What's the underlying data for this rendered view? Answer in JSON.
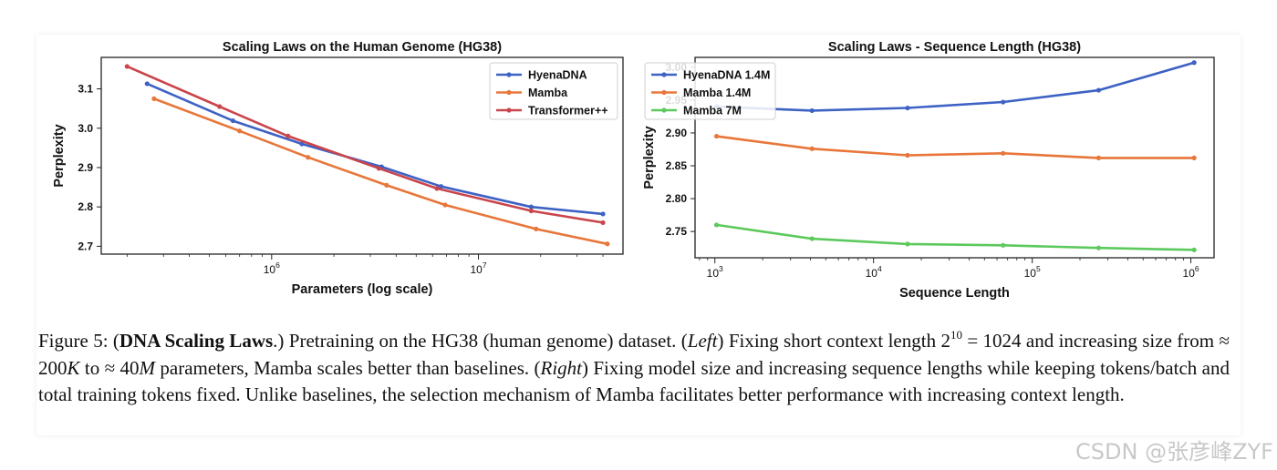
{
  "chart_data": [
    {
      "type": "line",
      "title": "Scaling Laws on the Human Genome (HG38)",
      "xlabel": "Parameters (log scale)",
      "ylabel": "Perplexity",
      "xscale": "log",
      "xlim": [
        150000,
        50000000
      ],
      "ylim": [
        2.68,
        3.18
      ],
      "xticks": [
        1000000,
        10000000
      ],
      "xtick_labels": [
        {
          "base": "10",
          "exp": "6"
        },
        {
          "base": "10",
          "exp": "7"
        }
      ],
      "yticks": [
        2.7,
        2.8,
        2.9,
        3.0,
        3.1
      ],
      "ytick_labels": [
        "2.7",
        "2.8",
        "2.9",
        "3.0",
        "3.1"
      ],
      "legend_position": "top-right",
      "series": [
        {
          "name": "HyenaDNA",
          "color": "#3e62c4",
          "x": [
            250000,
            650000,
            1400000,
            3400000,
            6600000,
            18000000,
            40000000
          ],
          "y": [
            3.113,
            3.019,
            2.96,
            2.902,
            2.852,
            2.8,
            2.782
          ]
        },
        {
          "name": "Mamba",
          "color": "#e8763a",
          "x": [
            270000,
            700000,
            1500000,
            3600000,
            6900000,
            19000000,
            42000000
          ],
          "y": [
            3.075,
            2.993,
            2.926,
            2.855,
            2.805,
            2.744,
            2.706
          ]
        },
        {
          "name": "Transformer++",
          "color": "#c9454b",
          "x": [
            200000,
            560000,
            1200000,
            3300000,
            6300000,
            18000000,
            40000000
          ],
          "y": [
            3.157,
            3.055,
            2.98,
            2.898,
            2.847,
            2.79,
            2.76
          ]
        }
      ]
    },
    {
      "type": "line",
      "title": "Scaling Laws - Sequence Length (HG38)",
      "xlabel": "Sequence Length",
      "ylabel": "Perplexity",
      "xscale": "log",
      "xlim": [
        750,
        1400000
      ],
      "ylim": [
        2.71,
        3.015
      ],
      "xticks": [
        1000,
        10000,
        100000,
        1000000
      ],
      "xtick_labels": [
        {
          "base": "10",
          "exp": "3"
        },
        {
          "base": "10",
          "exp": "4"
        },
        {
          "base": "10",
          "exp": "5"
        },
        {
          "base": "10",
          "exp": "6"
        }
      ],
      "yticks": [
        2.75,
        2.8,
        2.85,
        2.9,
        2.95,
        3.0
      ],
      "ytick_labels": [
        "2.75",
        "2.80",
        "2.85",
        "2.90",
        "2.95",
        "3.00"
      ],
      "legend_position": "top-left",
      "series": [
        {
          "name": "HyenaDNA 1.4M",
          "color": "#3e62c4",
          "x": [
            1024,
            4096,
            16384,
            65536,
            262144,
            1048576
          ],
          "y": [
            2.94,
            2.934,
            2.938,
            2.947,
            2.965,
            3.007
          ]
        },
        {
          "name": "Mamba 1.4M",
          "color": "#e8763a",
          "x": [
            1024,
            4096,
            16384,
            65536,
            262144,
            1048576
          ],
          "y": [
            2.895,
            2.876,
            2.866,
            2.869,
            2.862,
            2.862
          ]
        },
        {
          "name": "Mamba 7M",
          "color": "#5cc95c",
          "x": [
            1024,
            4096,
            16384,
            65536,
            262144,
            1048576
          ],
          "y": [
            2.76,
            2.739,
            2.731,
            2.729,
            2.725,
            2.722
          ]
        }
      ]
    }
  ],
  "caption": {
    "lead": "Figure 5: (",
    "bold_title": "DNA Scaling Laws",
    "after_bold": ".) Pretraining on the HG38 (human genome) dataset. (",
    "left_label": "Left",
    "part_left": ") Fixing short context length 2",
    "exponent": "10",
    "part_left_b": " = 1024 and increasing size from ≈ 200",
    "unit_k": "K",
    "part_to": " to ≈ 40",
    "unit_m": "M",
    "part_left_c": " parameters, Mamba scales better than baselines. (",
    "right_label": "Right",
    "part_right": ") Fixing model size and increasing sequence lengths while keeping tokens/batch and total training tokens fixed. Unlike baselines, the selection mechanism of Mamba facilitates better performance with increasing context length."
  },
  "watermark": "CSDN @张彦峰ZYF"
}
